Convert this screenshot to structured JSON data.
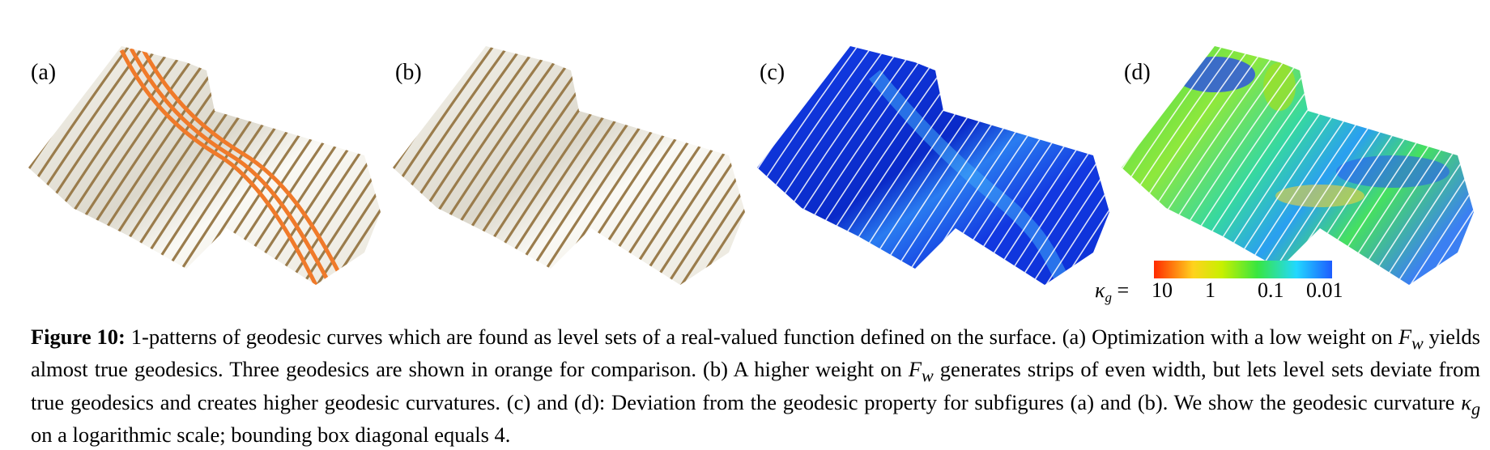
{
  "panels": [
    {
      "label": "(a)"
    },
    {
      "label": "(b)"
    },
    {
      "label": "(c)"
    },
    {
      "label": "(d)"
    }
  ],
  "colorbar": {
    "symbol": "κ",
    "subscript": "g",
    "equals": "=",
    "ticks": [
      "10",
      "1",
      "0.1",
      "0.01"
    ],
    "colors": [
      "#ff2a00",
      "#ffd21e",
      "#c8f000",
      "#38e640",
      "#22d8ff",
      "#1d5cff"
    ]
  },
  "caption": {
    "label": "Figure 10:",
    "seg1": " 1-patterns of geodesic curves which are found as level sets of a real-valued function defined on the surface. (a) Optimization with a low weight on ",
    "fw1": "F",
    "fw1_sub": "w",
    "seg2": " yields almost true geodesics. Three geodesics are shown in orange for comparison. (b) A higher weight on ",
    "fw2": "F",
    "fw2_sub": "w",
    "seg3": " generates strips of even width, but lets level sets deviate from true geodesics and creates higher geodesic curvatures. (c) and (d): Deviation from the geodesic property for subfigures (a) and (b). We show the geodesic curvature ",
    "kappa": "κ",
    "kappa_sub": "g",
    "seg4": " on a logarithmic scale; bounding box diagonal equals 4."
  },
  "colors": {
    "surface_light": "#f2efe6",
    "stripe_brown": "#9a7c4c",
    "geodesic_orange": "#f07a2a",
    "surface_blue": "#1238e0",
    "stripe_white": "#ffffff"
  }
}
